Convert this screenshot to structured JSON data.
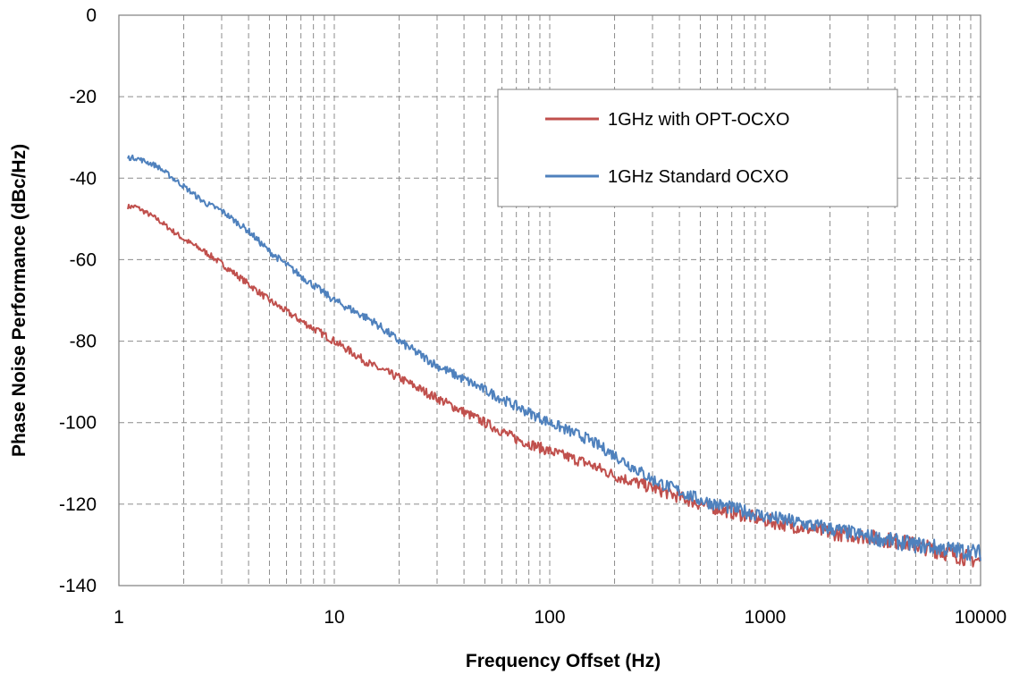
{
  "chart_data": {
    "type": "line",
    "title": "",
    "xlabel": "Frequency Offset (Hz)",
    "ylabel": "Phase Noise Performance (dBc/Hz)",
    "x_scale": "log",
    "xlim": [
      1,
      10000
    ],
    "ylim": [
      -140,
      0
    ],
    "x_ticks": [
      1,
      10,
      100,
      1000,
      10000
    ],
    "x_tick_labels": [
      "1",
      "10",
      "100",
      "1000",
      "10000"
    ],
    "y_ticks": [
      0,
      -20,
      -40,
      -60,
      -80,
      -100,
      -120,
      -140
    ],
    "y_tick_labels": [
      "0",
      "-20",
      "-40",
      "-60",
      "-80",
      "-100",
      "-120",
      "-140"
    ],
    "grid": "dashed major and minor gridlines",
    "legend_position": "top-right",
    "series": [
      {
        "name": "1GHz with OPT-OCXO",
        "color": "#c0504d",
        "x": [
          1.1,
          1.2,
          1.5,
          2,
          2.5,
          3,
          4,
          5,
          7,
          10,
          15,
          20,
          30,
          50,
          70,
          100,
          150,
          200,
          300,
          500,
          700,
          1000,
          2000,
          3000,
          5000,
          7000,
          10000
        ],
        "y": [
          -47,
          -47,
          -50,
          -55,
          -58,
          -61,
          -66,
          -70,
          -75,
          -80,
          -86,
          -89,
          -94,
          -100,
          -104,
          -107,
          -110,
          -113,
          -116,
          -120,
          -122,
          -124,
          -127,
          -128,
          -130,
          -132,
          -134
        ]
      },
      {
        "name": "1GHz Standard OCXO",
        "color": "#4f81bd",
        "x": [
          1.1,
          1.2,
          1.5,
          2,
          2.5,
          3,
          4,
          5,
          7,
          10,
          15,
          20,
          30,
          50,
          70,
          100,
          150,
          200,
          300,
          500,
          700,
          1000,
          2000,
          3000,
          5000,
          7000,
          10000
        ],
        "y": [
          -35,
          -35,
          -37,
          -42,
          -46,
          -48,
          -53,
          -58,
          -64,
          -70,
          -75,
          -80,
          -86,
          -92,
          -96,
          -100,
          -104,
          -108,
          -114,
          -119,
          -121,
          -123,
          -126,
          -128,
          -130,
          -131,
          -132
        ]
      }
    ]
  }
}
